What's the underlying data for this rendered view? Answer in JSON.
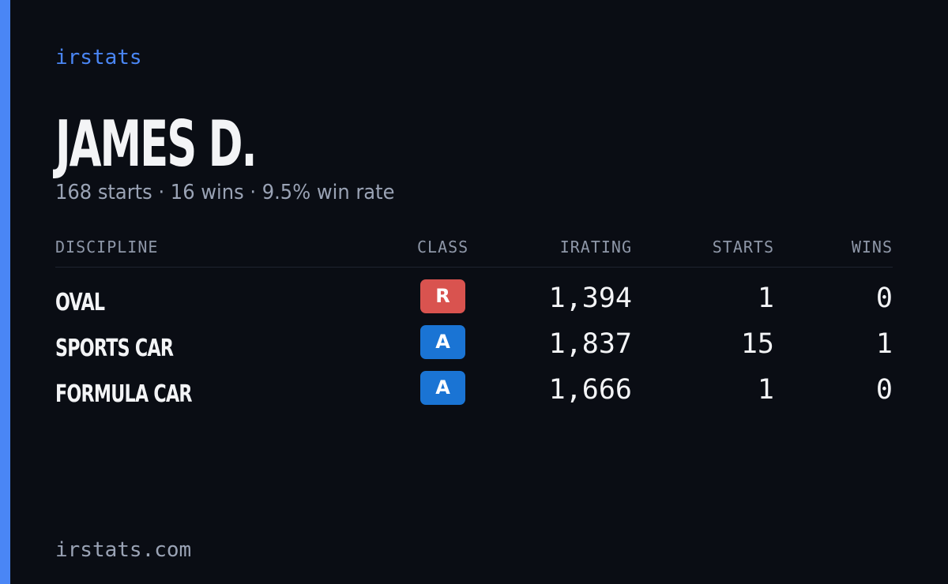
{
  "brand": "irstats",
  "player": {
    "name": "JAMES D.",
    "summary": "168 starts · 16 wins · 9.5% win rate"
  },
  "table": {
    "headers": {
      "discipline": "DISCIPLINE",
      "class": "CLASS",
      "irating": "IRATING",
      "starts": "STARTS",
      "wins": "WINS"
    },
    "rows": [
      {
        "discipline": "OVAL",
        "class": "R",
        "class_color": "#d9534f",
        "irating": "1,394",
        "starts": "1",
        "wins": "0"
      },
      {
        "discipline": "SPORTS CAR",
        "class": "A",
        "class_color": "#1a74d4",
        "irating": "1,837",
        "starts": "15",
        "wins": "1"
      },
      {
        "discipline": "FORMULA CAR",
        "class": "A",
        "class_color": "#1a74d4",
        "irating": "1,666",
        "starts": "1",
        "wins": "0"
      }
    ]
  },
  "footer": "irstats.com",
  "colors": {
    "accent": "#4a86f5",
    "background": "#0a0d14"
  }
}
